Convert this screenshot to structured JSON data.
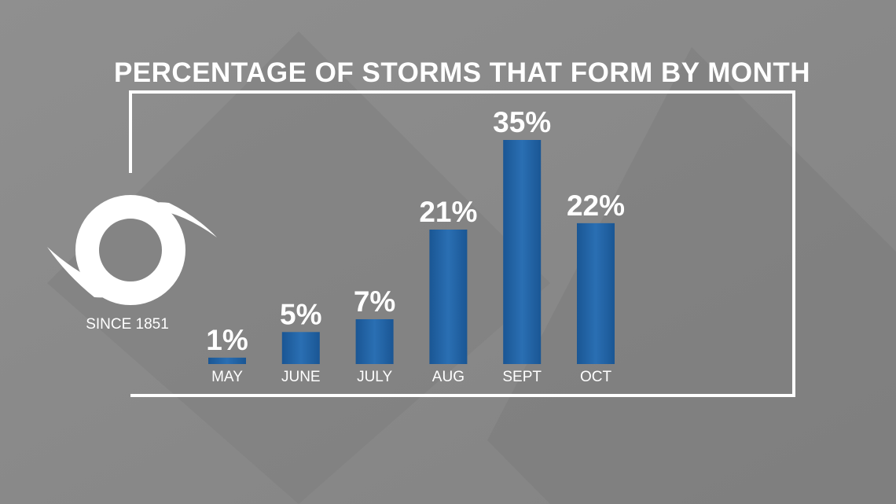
{
  "chart_data": {
    "type": "bar",
    "title": "PERCENTAGE OF STORMS THAT FORM BY MONTH",
    "annotation": "SINCE 1851",
    "categories": [
      "MAY",
      "JUNE",
      "JULY",
      "AUG",
      "SEPT",
      "OCT"
    ],
    "values": [
      1,
      5,
      7,
      21,
      35,
      22
    ],
    "value_labels": [
      "1%",
      "5%",
      "7%",
      "21%",
      "35%",
      "22%"
    ],
    "color": "#2162a3"
  }
}
